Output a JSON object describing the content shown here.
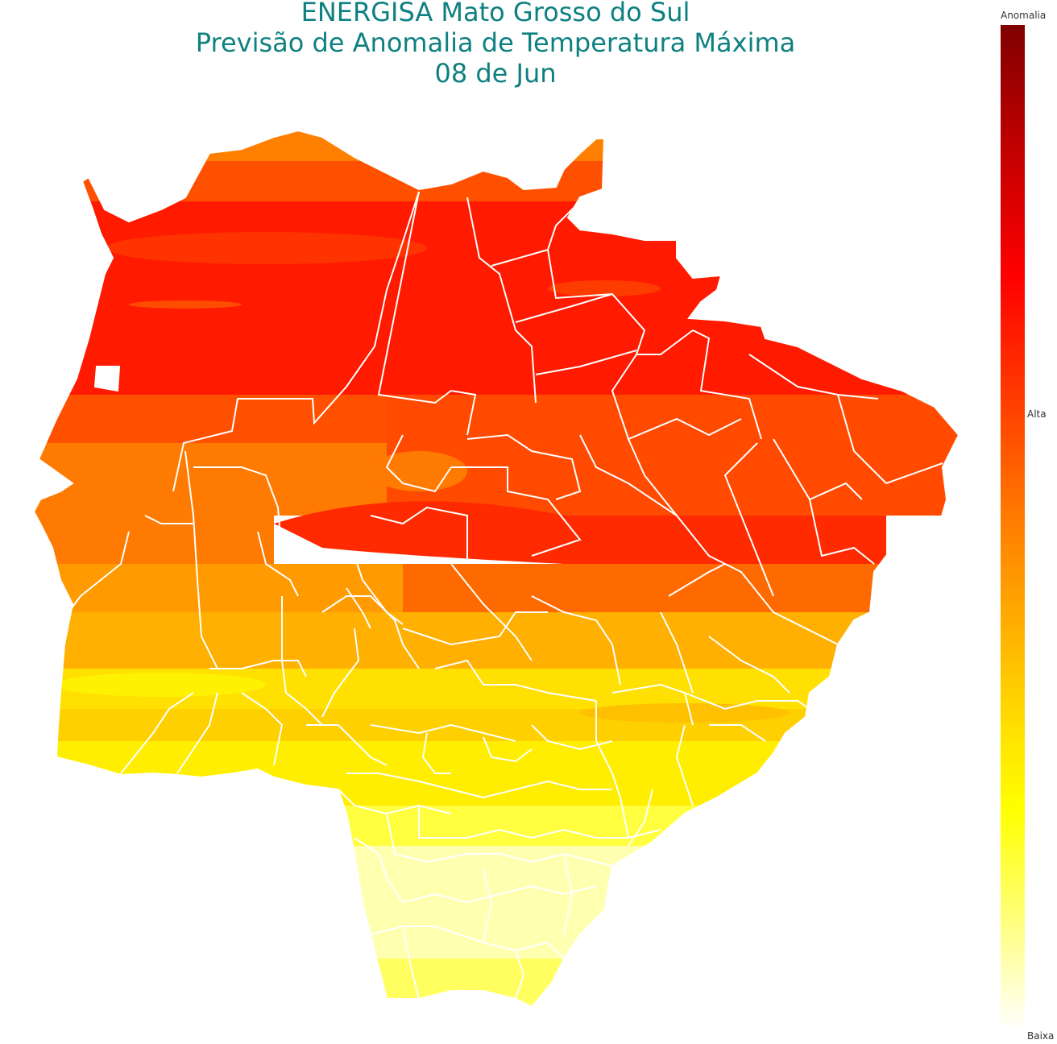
{
  "title": {
    "line1": "ENERGISA Mato Grosso do Sul",
    "line2": "Previsão de Anomalia de Temperatura Máxima",
    "line3": "08 de Jun"
  },
  "colorbar": {
    "title": "Anomalia",
    "high_label": "Alta",
    "low_label": "Baixa",
    "colors": [
      "#800000",
      "#c00000",
      "#ff0000",
      "#ff4000",
      "#ff8000",
      "#ffb000",
      "#ffe000",
      "#ffff00",
      "#ffff70",
      "#ffffff"
    ]
  },
  "map": {
    "region": "Mato Grosso do Sul",
    "border_color": "#ffffff",
    "bands": [
      "#ff4a00",
      "#ff2000",
      "#ff1a00",
      "#ff5a00",
      "#ff7a00",
      "#ff3000",
      "#ff9a00",
      "#ffc000",
      "#ffe000",
      "#fff200",
      "#ffff60",
      "#ffffb0",
      "#ffff40"
    ]
  }
}
